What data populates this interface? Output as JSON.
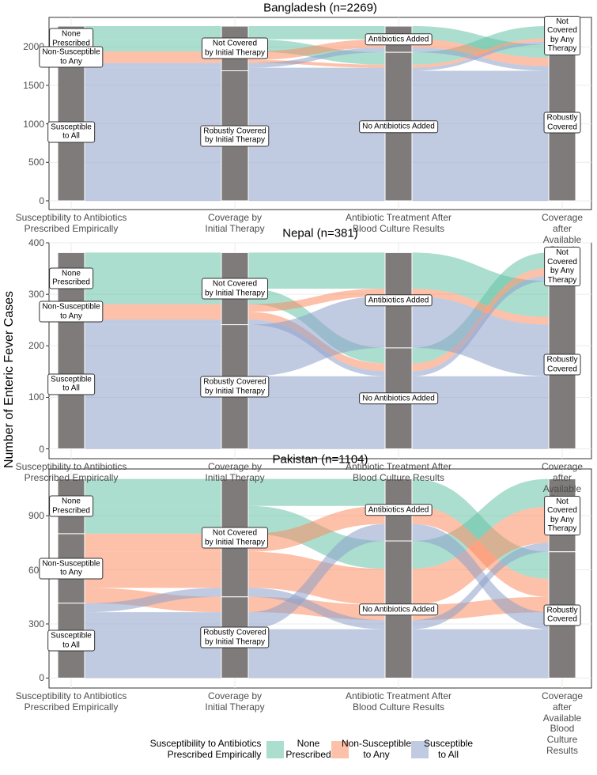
{
  "chart_data": [
    {
      "type": "alluvial",
      "title": "Bangladesh (n=2269)",
      "ylim": [
        -113.45,
        2382.45
      ],
      "yticks": [
        0,
        500,
        1000,
        1500,
        2000
      ],
      "axes": [
        {
          "label": "Susceptibility to Antibiotics\nPrescribed Empirically",
          "strata": [
            "None\nPrescribed",
            "Non-Susceptible\nto Any",
            "Susceptible\nto All"
          ]
        },
        {
          "label": "Coverage by\nInitial Therapy",
          "strata": [
            "Not Covered\nby Initial Therapy",
            "Robustly Covered\nby Initial Therapy"
          ]
        },
        {
          "label": "Antibiotic Treatment After\nBlood Culture Results",
          "strata": [
            "Antibiotics Added",
            "No Antibiotics Added"
          ]
        },
        {
          "label": "Coverage after\nAvailable Blood\nCulture Results",
          "strata": [
            "Not Covered\nby Any Therapy",
            "Robustly Covered"
          ]
        }
      ],
      "flows": [
        {
          "path": [
            0,
            0,
            0,
            1
          ],
          "value": 170
        },
        {
          "path": [
            0,
            0,
            1,
            0
          ],
          "value": 160
        },
        {
          "path": [
            1,
            0,
            0,
            1
          ],
          "value": 110
        },
        {
          "path": [
            1,
            0,
            1,
            0
          ],
          "value": 40
        },
        {
          "path": [
            2,
            0,
            0,
            1
          ],
          "value": 60
        },
        {
          "path": [
            2,
            0,
            1,
            0
          ],
          "value": 40
        },
        {
          "path": [
            2,
            1,
            1,
            1
          ],
          "value": 1689
        }
      ]
    },
    {
      "type": "alluvial",
      "title": "Nepal (n=381)",
      "ylim": [
        -19.05,
        400.05
      ],
      "yticks": [
        0,
        100,
        200,
        300,
        400
      ],
      "axes": [
        {
          "label": "Susceptibility to Antibiotics\nPrescribed Empirically",
          "strata": [
            "None\nPrescribed",
            "Non-Susceptible\nto Any",
            "Susceptible\nto All"
          ]
        },
        {
          "label": "Coverage by\nInitial Therapy",
          "strata": [
            "Not Covered\nby Initial Therapy",
            "Robustly Covered\nby Initial Therapy"
          ]
        },
        {
          "label": "Antibiotic Treatment After\nBlood Culture Results",
          "strata": [
            "Antibiotics Added",
            "No Antibiotics Added"
          ]
        },
        {
          "label": "Coverage after\nAvailable Blood\nCulture Results",
          "strata": [
            "Not Covered\nby Any Therapy",
            "Robustly Covered"
          ]
        }
      ],
      "flows": [
        {
          "path": [
            0,
            0,
            0,
            1
          ],
          "value": 70
        },
        {
          "path": [
            0,
            0,
            1,
            0
          ],
          "value": 30
        },
        {
          "path": [
            1,
            0,
            0,
            1
          ],
          "value": 15
        },
        {
          "path": [
            1,
            0,
            1,
            0
          ],
          "value": 15
        },
        {
          "path": [
            2,
            0,
            1,
            0
          ],
          "value": 10
        },
        {
          "path": [
            2,
            1,
            0,
            1
          ],
          "value": 100
        },
        {
          "path": [
            2,
            1,
            1,
            1
          ],
          "value": 141
        }
      ]
    },
    {
      "type": "alluvial",
      "title": "Pakistan (n=1104)",
      "ylim": [
        -55.2,
        1159.2
      ],
      "yticks": [
        0,
        300,
        600,
        900
      ],
      "axes": [
        {
          "label": "Susceptibility to Antibiotics\nPrescribed Empirically",
          "strata": [
            "None\nPrescribed",
            "Non-Susceptible\nto Any",
            "Susceptible\nto All"
          ]
        },
        {
          "label": "Coverage by\nInitial Therapy",
          "strata": [
            "Not Covered\nby Initial Therapy",
            "Robustly Covered\nby Initial Therapy"
          ]
        },
        {
          "label": "Antibiotic Treatment After\nBlood Culture Results",
          "strata": [
            "Antibiotics Added",
            "No Antibiotics Added"
          ]
        },
        {
          "label": "Coverage after\nAvailable Blood\nCulture Results",
          "strata": [
            "Not Covered\nby Any Therapy",
            "Robustly Covered"
          ]
        }
      ],
      "flows": [
        {
          "path": [
            0,
            0,
            0,
            1
          ],
          "value": 150
        },
        {
          "path": [
            0,
            0,
            1,
            0
          ],
          "value": 154
        },
        {
          "path": [
            1,
            0,
            0,
            1
          ],
          "value": 100
        },
        {
          "path": [
            1,
            0,
            1,
            0
          ],
          "value": 200
        },
        {
          "path": [
            1,
            1,
            1,
            1
          ],
          "value": 85
        },
        {
          "path": [
            2,
            0,
            1,
            0
          ],
          "value": 50
        },
        {
          "path": [
            2,
            1,
            0,
            1
          ],
          "value": 94
        },
        {
          "path": [
            2,
            1,
            1,
            1
          ],
          "value": 271
        }
      ]
    }
  ],
  "y_label": "Number of Enteric Fever Cases",
  "legend": {
    "title": "Susceptibility to Antibiotics\nPrescribed Empirically",
    "items": [
      {
        "name": "None\nPrescribed",
        "color": "#66c2a5"
      },
      {
        "name": "Non-Susceptible\nto Any",
        "color": "#fc8d62"
      },
      {
        "name": "Susceptible\nto All",
        "color": "#8da0cb"
      }
    ]
  }
}
